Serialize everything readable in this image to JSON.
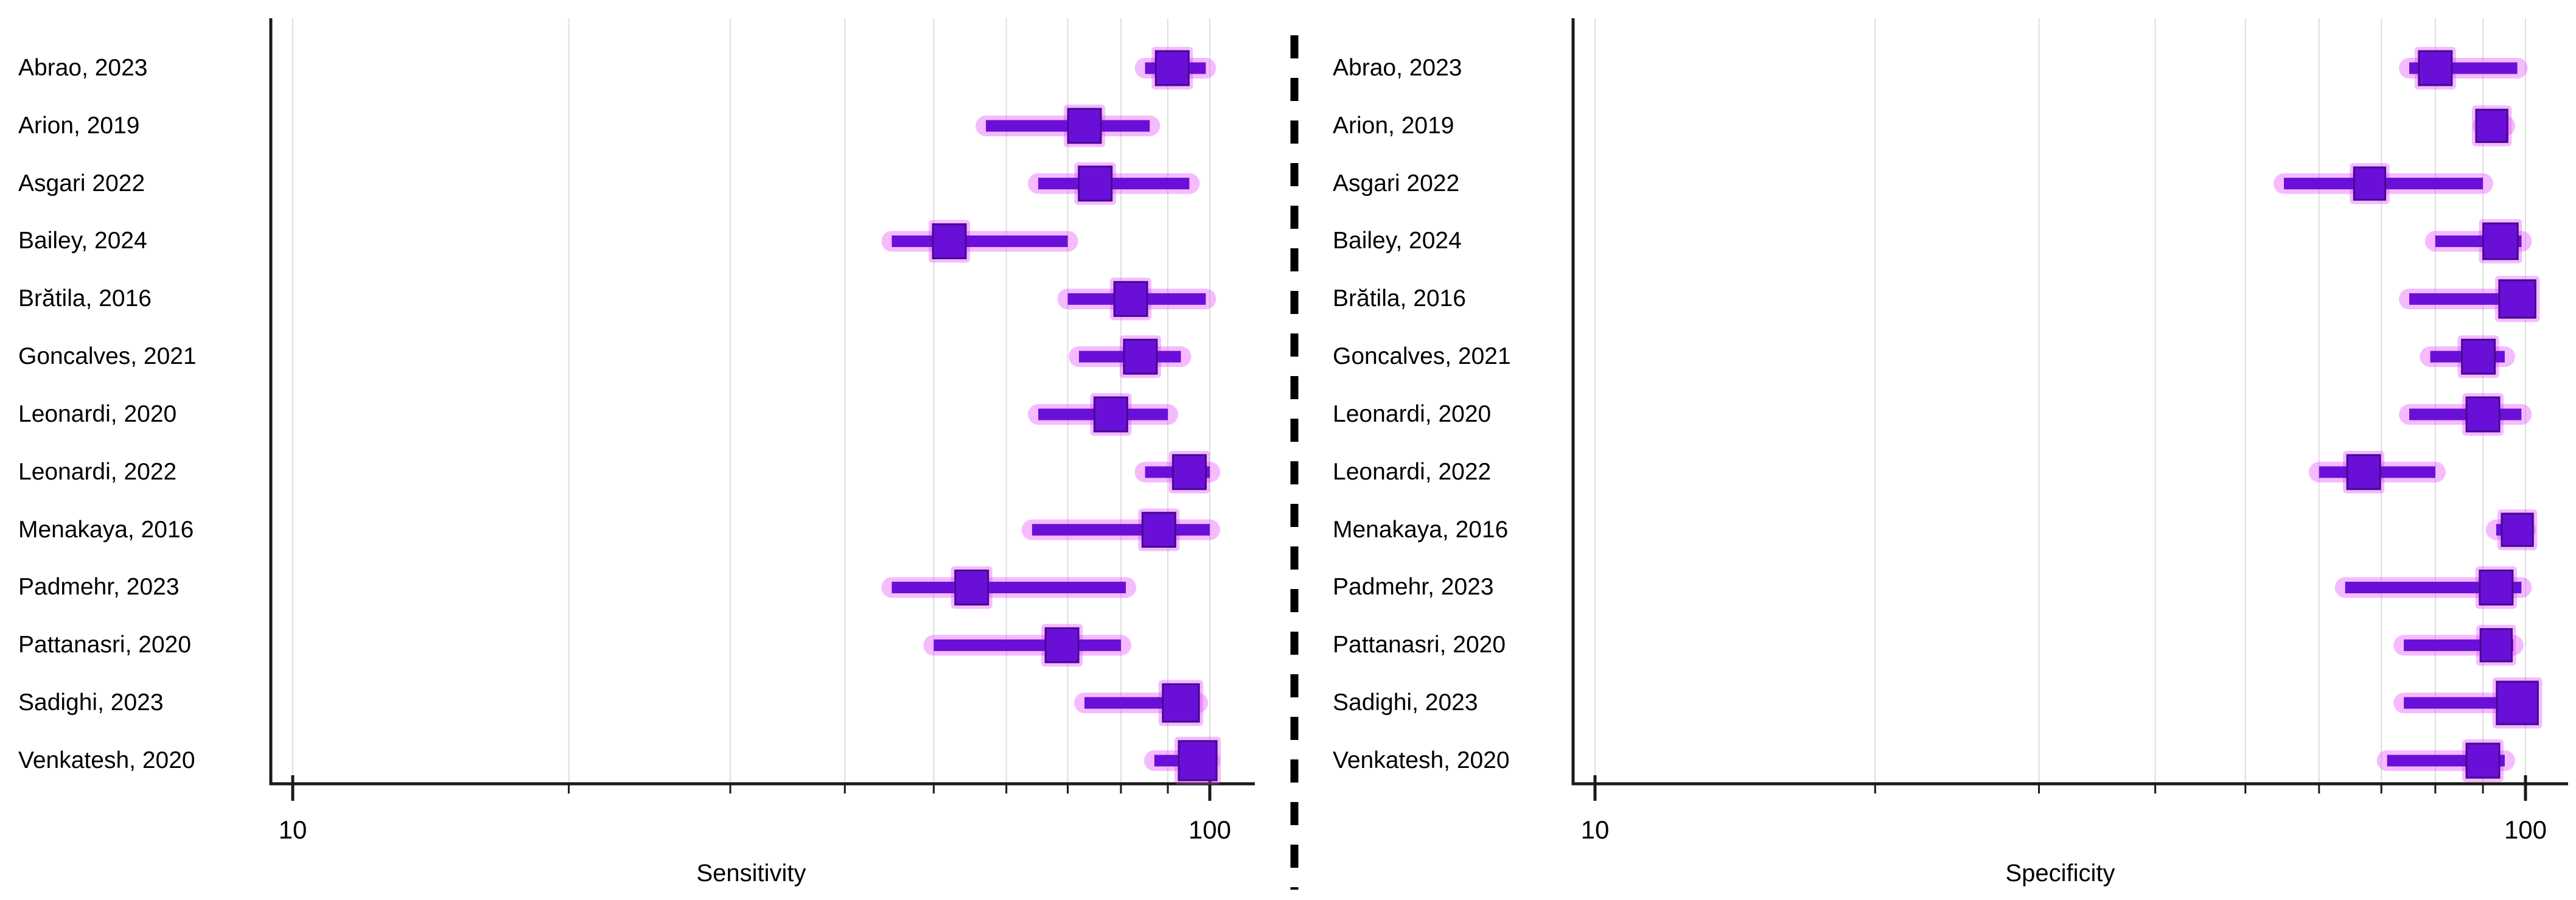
{
  "figure": {
    "background": "#ffffff"
  },
  "colors": {
    "marker": "#6a0fd8",
    "marker_edge": "#47098f",
    "glow": "#e23cff",
    "grid": "#dedede",
    "axis": "#1a1a1a",
    "text": "#000000",
    "divider": "#000000"
  },
  "chart_data": {
    "type": "forest",
    "xscale": "log",
    "x_range": [
      10,
      100
    ],
    "x_ticks": [
      10,
      20,
      30,
      40,
      50,
      60,
      70,
      80,
      90,
      100
    ],
    "x_labeled_ticks": [
      10,
      100
    ],
    "grid": true,
    "legend": "none",
    "studies": [
      "Abrao, 2023",
      "Arion, 2019",
      "Asgari 2022",
      "Bailey, 2024",
      "Brătila, 2016",
      "Goncalves, 2021",
      "Leonardi, 2020",
      "Leonardi, 2022",
      "Menakaya, 2016",
      "Padmehr, 2023",
      "Pattanasri, 2020",
      "Sadighi, 2023",
      "Venkatesh, 2020"
    ],
    "panels": [
      {
        "xlabel": "Sensitivity",
        "series": [
          {
            "study": "Abrao, 2023",
            "est": 91,
            "lo": 85,
            "hi": 99,
            "ms": 1.0
          },
          {
            "study": "Arion, 2019",
            "est": 73,
            "lo": 57,
            "hi": 86,
            "ms": 1.0
          },
          {
            "study": "Asgari 2022",
            "est": 75,
            "lo": 65,
            "hi": 95,
            "ms": 1.0
          },
          {
            "study": "Bailey, 2024",
            "est": 52,
            "lo": 45,
            "hi": 70,
            "ms": 1.0
          },
          {
            "study": "Brătila, 2016",
            "est": 82,
            "lo": 70,
            "hi": 99,
            "ms": 1.0
          },
          {
            "study": "Goncalves, 2021",
            "est": 84,
            "lo": 72,
            "hi": 93,
            "ms": 1.0
          },
          {
            "study": "Leonardi, 2020",
            "est": 78,
            "lo": 65,
            "hi": 90,
            "ms": 1.0
          },
          {
            "study": "Leonardi, 2022",
            "est": 95,
            "lo": 85,
            "hi": 100,
            "ms": 1.0
          },
          {
            "study": "Menakaya, 2016",
            "est": 88,
            "lo": 64,
            "hi": 100,
            "ms": 1.0
          },
          {
            "study": "Padmehr, 2023",
            "est": 55,
            "lo": 45,
            "hi": 81,
            "ms": 1.0
          },
          {
            "study": "Pattanasri, 2020",
            "est": 69,
            "lo": 50,
            "hi": 80,
            "ms": 1.0
          },
          {
            "study": "Sadighi, 2023",
            "est": 93,
            "lo": 73,
            "hi": 97,
            "ms": 1.1
          },
          {
            "study": "Venkatesh, 2020",
            "est": 97,
            "lo": 87,
            "hi": 100,
            "ms": 1.15
          }
        ]
      },
      {
        "xlabel": "Specificity",
        "series": [
          {
            "study": "Abrao, 2023",
            "est": 80,
            "lo": 75,
            "hi": 98,
            "ms": 1.0
          },
          {
            "study": "Arion, 2019",
            "est": 92,
            "lo": 90,
            "hi": 95,
            "ms": 0.95
          },
          {
            "study": "Asgari 2022",
            "est": 68,
            "lo": 55,
            "hi": 90,
            "ms": 0.95
          },
          {
            "study": "Bailey, 2024",
            "est": 94,
            "lo": 80,
            "hi": 99,
            "ms": 1.05
          },
          {
            "study": "Brătila, 2016",
            "est": 98,
            "lo": 75,
            "hi": 100,
            "ms": 1.1
          },
          {
            "study": "Goncalves, 2021",
            "est": 89,
            "lo": 79,
            "hi": 95,
            "ms": 1.0
          },
          {
            "study": "Leonardi, 2020",
            "est": 90,
            "lo": 75,
            "hi": 99,
            "ms": 1.0
          },
          {
            "study": "Leonardi, 2022",
            "est": 67,
            "lo": 60,
            "hi": 80,
            "ms": 1.0
          },
          {
            "study": "Menakaya, 2016",
            "est": 98,
            "lo": 93,
            "hi": 100,
            "ms": 0.95
          },
          {
            "study": "Padmehr, 2023",
            "est": 93,
            "lo": 64,
            "hi": 99,
            "ms": 1.0
          },
          {
            "study": "Pattanasri, 2020",
            "est": 93,
            "lo": 74,
            "hi": 97,
            "ms": 0.95
          },
          {
            "study": "Sadighi, 2023",
            "est": 98,
            "lo": 74,
            "hi": 100,
            "ms": 1.25
          },
          {
            "study": "Venkatesh, 2020",
            "est": 90,
            "lo": 71,
            "hi": 95,
            "ms": 1.0
          }
        ]
      }
    ]
  }
}
